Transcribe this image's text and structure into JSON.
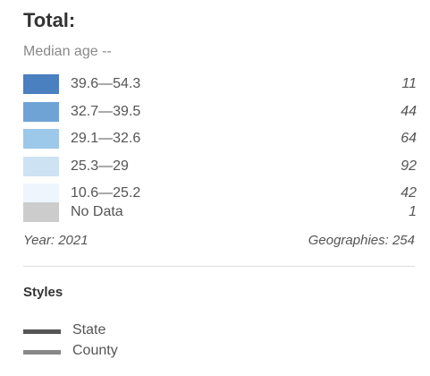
{
  "header": {
    "title": "Total:",
    "subtitle": "Median age --"
  },
  "legend": [
    {
      "label": "39.6—54.3",
      "count": "11",
      "color": "#4a7fc0"
    },
    {
      "label": "32.7—39.5",
      "count": "44",
      "color": "#6fa3d5"
    },
    {
      "label": "29.1—32.6",
      "count": "64",
      "color": "#9cc8ea"
    },
    {
      "label": "25.3—29",
      "count": "92",
      "color": "#cde2f3"
    },
    {
      "label": "10.6—25.2",
      "count": "42",
      "color": "#eef5fd"
    },
    {
      "label": "No Data",
      "count": "1",
      "color": "#cccccc"
    }
  ],
  "footer": {
    "year": "Year: 2021",
    "geographies": "Geographies: 254"
  },
  "styles": {
    "title": "Styles",
    "items": [
      {
        "label": "State",
        "color": "#555555"
      },
      {
        "label": "County",
        "color": "#888888"
      }
    ]
  }
}
